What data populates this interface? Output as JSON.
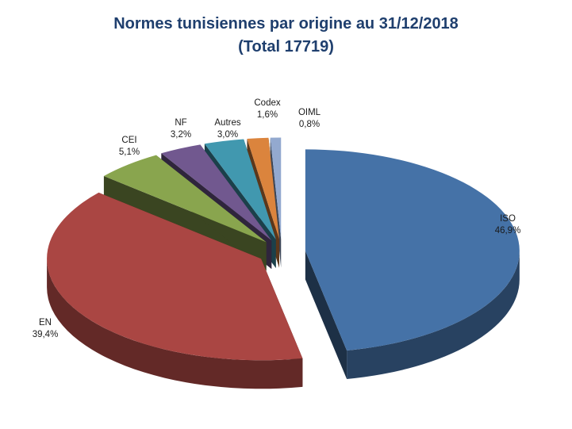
{
  "chart_data": {
    "type": "pie",
    "title": "Normes tunisiennes par origine au 31/12/2018",
    "subtitle": "(Total  17719)",
    "exploded": true,
    "three_d": true,
    "slices": [
      {
        "name": "ISO",
        "value": 46.9,
        "label": "46,9%",
        "color": "#4572A7"
      },
      {
        "name": "EN",
        "value": 39.4,
        "label": "39,4%",
        "color": "#AA4643"
      },
      {
        "name": "CEI",
        "value": 5.1,
        "label": "5,1%",
        "color": "#89A54E"
      },
      {
        "name": "NF",
        "value": 3.2,
        "label": "3,2%",
        "color": "#71588F"
      },
      {
        "name": "Autres",
        "value": 3.0,
        "label": "3,0%",
        "color": "#4198AF"
      },
      {
        "name": "Codex",
        "value": 1.6,
        "label": "1,6%",
        "color": "#DB843D"
      },
      {
        "name": "OIML",
        "value": 0.8,
        "label": "0,8%",
        "color": "#93A9CF"
      }
    ]
  }
}
